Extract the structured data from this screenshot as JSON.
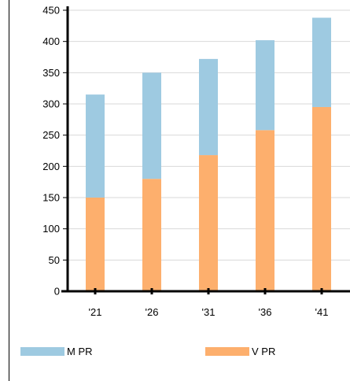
{
  "chart_data": {
    "type": "bar",
    "stacked": true,
    "categories": [
      "'21",
      "'26",
      "'31",
      "'36",
      "'41"
    ],
    "series": [
      {
        "name": "V PR",
        "color": "#FDAF6D",
        "values": [
          150,
          180,
          218,
          258,
          295
        ]
      },
      {
        "name": "M PR",
        "color": "#9ECAE1",
        "values": [
          165,
          170,
          154,
          144,
          143
        ]
      }
    ],
    "yticks": [
      0,
      50,
      100,
      150,
      200,
      250,
      300,
      350,
      400,
      450
    ],
    "ylim": [
      0,
      450
    ],
    "title": "",
    "xlabel": "",
    "ylabel": "",
    "grid": true,
    "legend_position": "bottom"
  },
  "legend": {
    "items": [
      {
        "label": "M PR",
        "color": "#9ECAE1"
      },
      {
        "label": "V PR",
        "color": "#FDAF6D"
      }
    ]
  }
}
